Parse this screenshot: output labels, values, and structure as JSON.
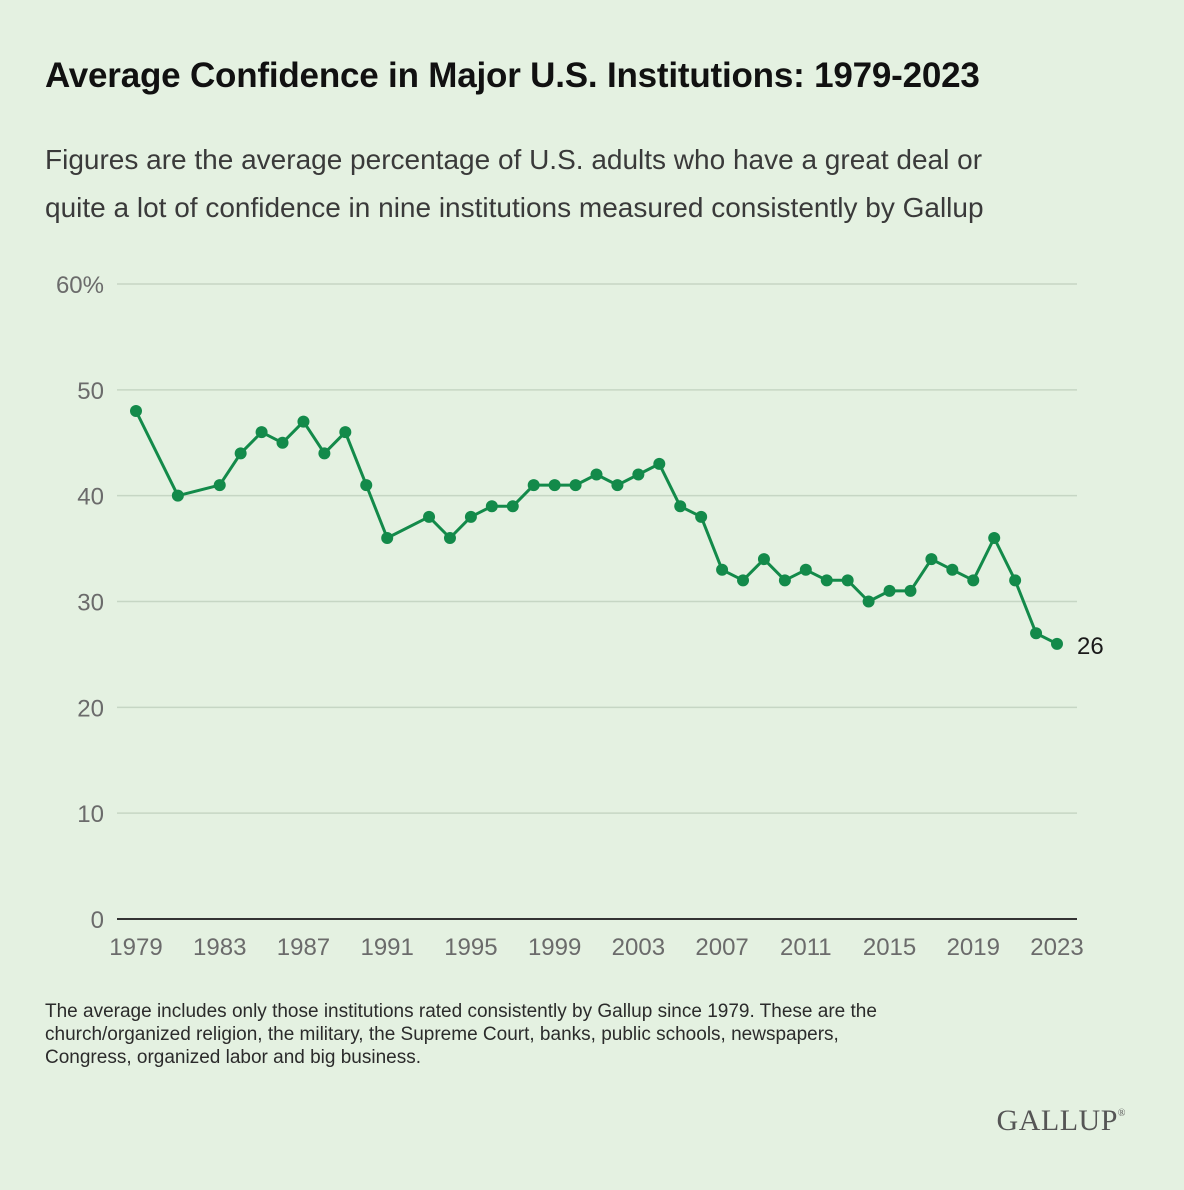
{
  "header": {
    "title": "Average Confidence in Major U.S. Institutions: 1979-2023",
    "subtitle_line1": "Figures are the average percentage of U.S. adults who have a great deal or",
    "subtitle_line2": "quite a lot of confidence in nine institutions measured consistently by Gallup"
  },
  "footnote": {
    "line1": "The average includes only those institutions rated consistently by Gallup since 1979. These are the",
    "line2": "church/organized religion, the military, the Supreme Court, banks, public schools, newspapers,",
    "line3": "Congress, organized labor and big business."
  },
  "brand": {
    "name": "GALLUP",
    "mark": "®"
  },
  "colors": {
    "series": "#138a4a",
    "grid": "#c6d6c4",
    "axis": "#333333",
    "tick": "#6b6b6b"
  },
  "chart_data": {
    "type": "line",
    "title": "Average Confidence in Major U.S. Institutions: 1979-2023",
    "xlabel": "",
    "ylabel": "",
    "ylim": [
      0,
      60
    ],
    "xlim": [
      1979,
      2023
    ],
    "grid": true,
    "y_ticks": [
      {
        "value": 0,
        "label": "0"
      },
      {
        "value": 10,
        "label": "10"
      },
      {
        "value": 20,
        "label": "20"
      },
      {
        "value": 30,
        "label": "30"
      },
      {
        "value": 40,
        "label": "40"
      },
      {
        "value": 50,
        "label": "50"
      },
      {
        "value": 60,
        "label": "60%"
      }
    ],
    "x_ticks": [
      {
        "value": 1979,
        "label": "1979"
      },
      {
        "value": 1983,
        "label": "1983"
      },
      {
        "value": 1987,
        "label": "1987"
      },
      {
        "value": 1991,
        "label": "1991"
      },
      {
        "value": 1995,
        "label": "1995"
      },
      {
        "value": 1999,
        "label": "1999"
      },
      {
        "value": 2003,
        "label": "2003"
      },
      {
        "value": 2007,
        "label": "2007"
      },
      {
        "value": 2011,
        "label": "2011"
      },
      {
        "value": 2015,
        "label": "2015"
      },
      {
        "value": 2019,
        "label": "2019"
      },
      {
        "value": 2023,
        "label": "2023"
      }
    ],
    "series": [
      {
        "x": [
          1979,
          1981,
          1983,
          1984,
          1985,
          1986,
          1987,
          1988,
          1989,
          1990,
          1991,
          1993,
          1994,
          1995,
          1996,
          1997,
          1998,
          1999,
          2000,
          2001,
          2002,
          2003,
          2004,
          2005,
          2006,
          2007,
          2008,
          2009,
          2010,
          2011,
          2012,
          2013,
          2014,
          2015,
          2016,
          2017,
          2018,
          2019,
          2020,
          2021,
          2022,
          2023
        ],
        "values": [
          48,
          40,
          41,
          44,
          46,
          45,
          47,
          44,
          46,
          41,
          36,
          38,
          36,
          38,
          39,
          39,
          41,
          41,
          41,
          42,
          41,
          42,
          43,
          39,
          38,
          33,
          32,
          34,
          32,
          33,
          32,
          32,
          30,
          31,
          31,
          34,
          33,
          32,
          36,
          32,
          27,
          26
        ]
      }
    ],
    "end_label": "26"
  }
}
